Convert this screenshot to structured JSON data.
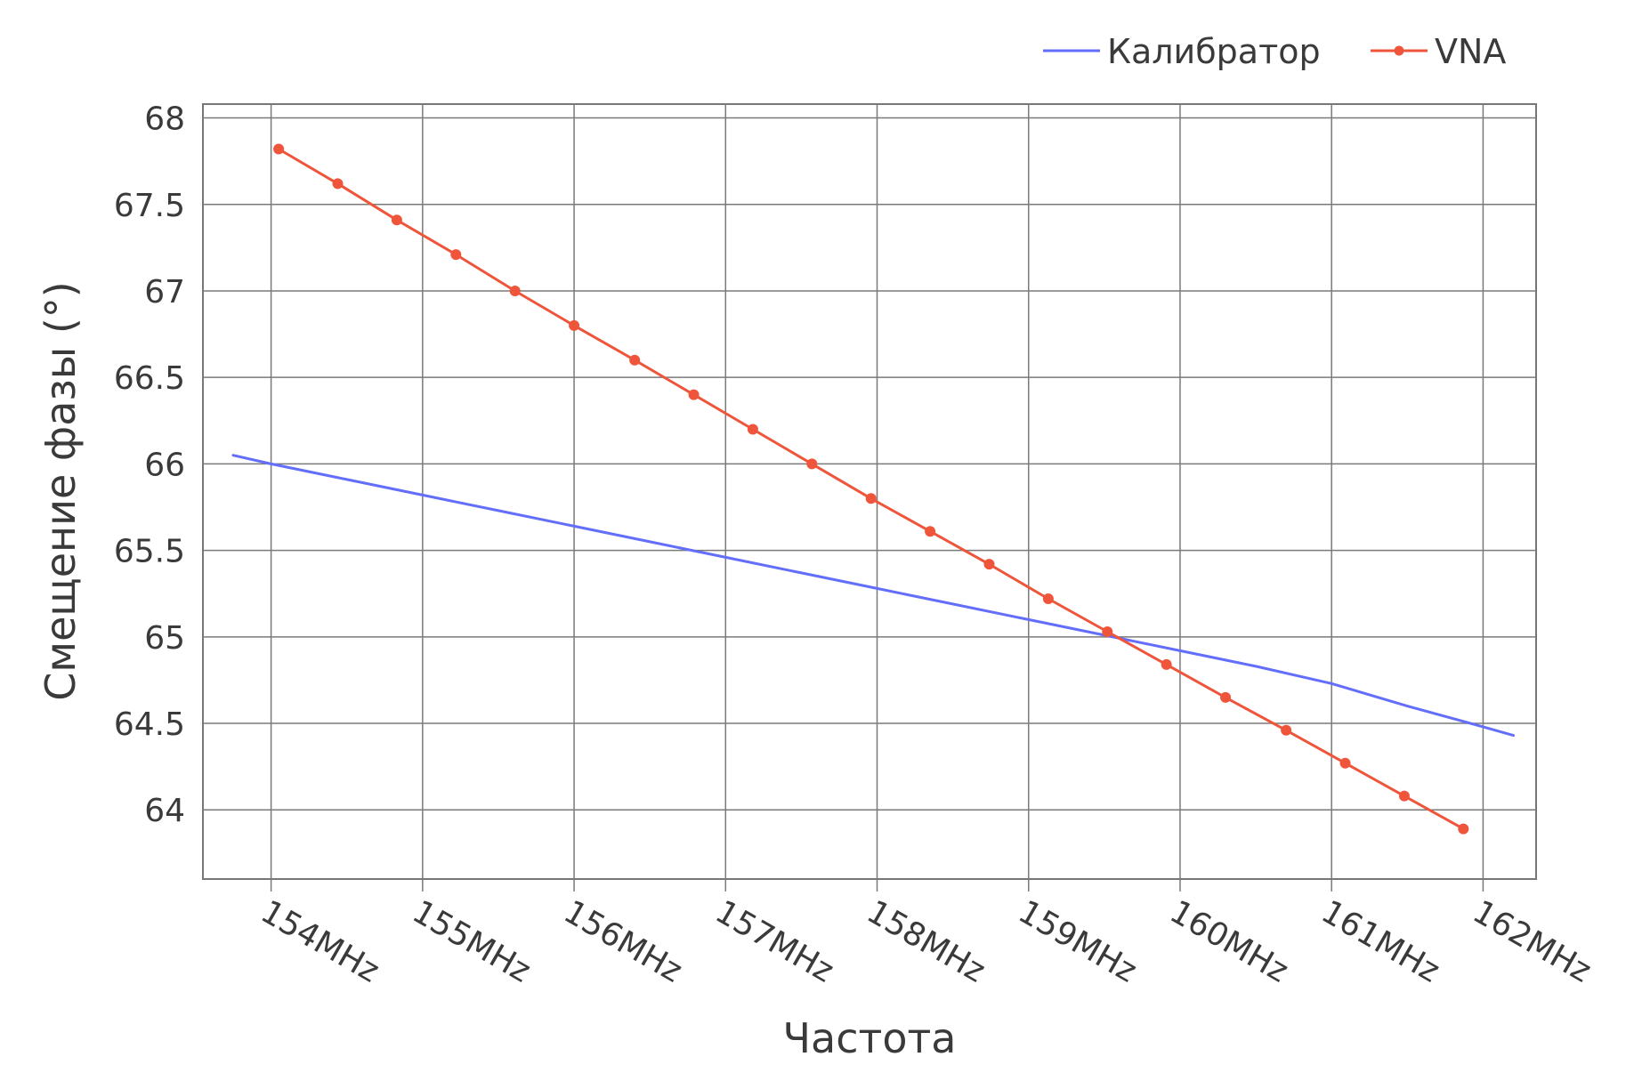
{
  "chart_data": {
    "type": "line",
    "xlabel": "Частота",
    "ylabel": "Смещение фазы (°)",
    "xlim": [
      153.55,
      162.35
    ],
    "ylim": [
      63.6,
      68.08
    ],
    "x_ticks": [
      154,
      155,
      156,
      157,
      158,
      159,
      160,
      161,
      162
    ],
    "x_tick_labels": [
      "154MHz",
      "155MHz",
      "156MHz",
      "157MHz",
      "158MHz",
      "159MHz",
      "160MHz",
      "161MHz",
      "162MHz"
    ],
    "y_ticks": [
      64,
      64.5,
      65,
      65.5,
      66,
      66.5,
      67,
      67.5,
      68
    ],
    "y_tick_labels": [
      "64",
      "64.5",
      "65",
      "65.5",
      "66",
      "66.5",
      "67",
      "67.5",
      "68"
    ],
    "grid": true,
    "legend_position": "top-right",
    "series": [
      {
        "name": "Калибратор",
        "color": "#636efa",
        "mode": "lines",
        "x": [
          153.75,
          154.0,
          154.5,
          155.0,
          155.5,
          156.0,
          156.5,
          157.0,
          157.5,
          158.0,
          158.5,
          159.0,
          159.5,
          160.0,
          160.5,
          161.0,
          161.5,
          162.0,
          162.2
        ],
        "y": [
          66.05,
          66.0,
          65.91,
          65.82,
          65.73,
          65.64,
          65.55,
          65.46,
          65.37,
          65.28,
          65.19,
          65.1,
          65.01,
          64.92,
          64.83,
          64.73,
          64.6,
          64.48,
          64.43
        ]
      },
      {
        "name": "VNA",
        "color": "#ef553b",
        "mode": "lines+markers",
        "x": [
          154.05,
          154.44,
          154.83,
          155.22,
          155.61,
          156.0,
          156.4,
          156.79,
          157.18,
          157.57,
          157.96,
          158.35,
          158.74,
          159.13,
          159.52,
          159.91,
          160.3,
          160.7,
          161.09,
          161.48,
          161.87
        ],
        "y": [
          67.82,
          67.62,
          67.41,
          67.21,
          67.0,
          66.8,
          66.6,
          66.4,
          66.2,
          66.0,
          65.8,
          65.61,
          65.42,
          65.22,
          65.03,
          64.84,
          64.65,
          64.46,
          64.27,
          64.08,
          63.89
        ]
      }
    ]
  }
}
